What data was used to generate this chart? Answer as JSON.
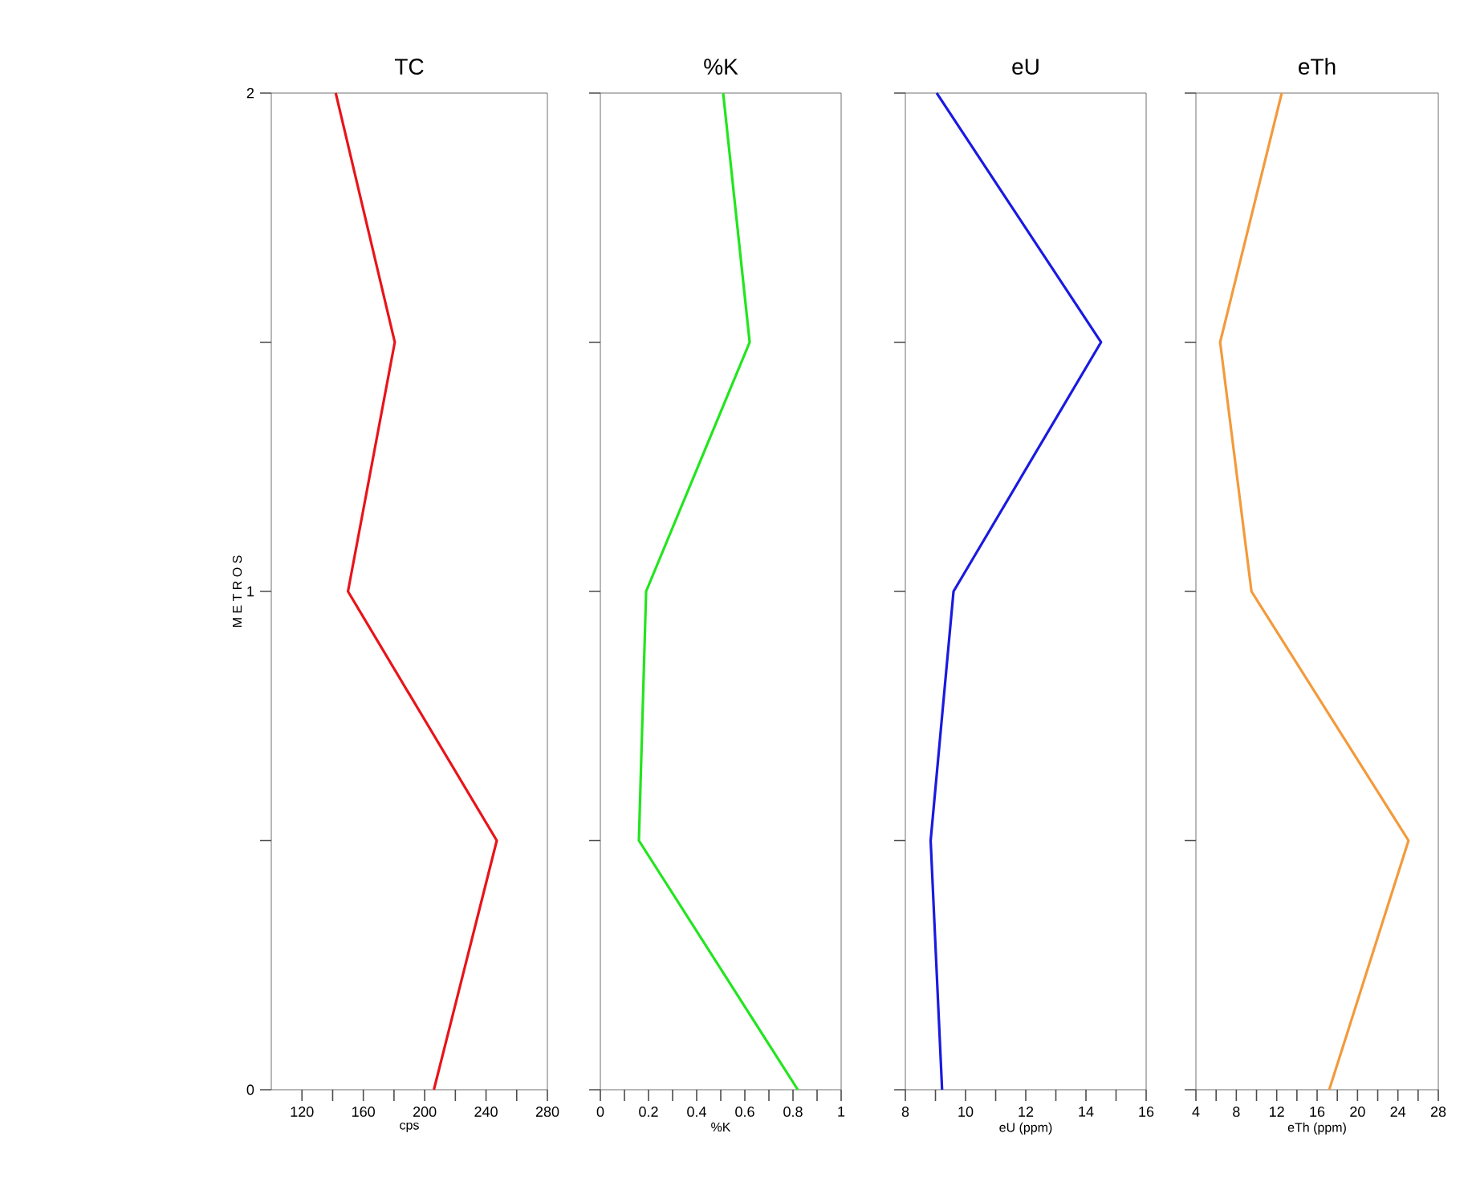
{
  "chart_data": [
    {
      "type": "line",
      "title": "TC",
      "xlabel": "cps",
      "ylabel": "M E T R O S",
      "color": "#e8141a",
      "marker": "none",
      "line_style": "solid",
      "grid": false,
      "x": [
        206,
        247,
        150,
        180.5,
        142
      ],
      "values": [
        0,
        0.5,
        1,
        1.5,
        2
      ],
      "xlim": [
        100,
        280
      ],
      "ylim": [
        0,
        2
      ],
      "xticks": [
        120,
        {
          "value": 140,
          "label": null
        },
        160,
        {
          "value": 180,
          "label": null
        },
        200,
        {
          "value": 220,
          "label": null
        },
        240,
        {
          "value": 260,
          "label": null
        },
        280
      ],
      "yticks": [
        0,
        {
          "value": 0.5,
          "label": null
        },
        1,
        {
          "value": 1.5,
          "label": null
        },
        2
      ]
    },
    {
      "type": "line",
      "title": "%K",
      "xlabel": "%K",
      "color": "#22e51e",
      "marker": "none",
      "line_style": "solid",
      "grid": false,
      "tick_labels": "x",
      "x": [
        0.82,
        0.16,
        0.19,
        0.62,
        0.51
      ],
      "values": [
        0,
        0.5,
        1,
        1.5,
        2
      ],
      "xlim": [
        0,
        1
      ],
      "ylim": [
        0,
        2
      ],
      "xticks": [
        0,
        {
          "value": 0.1,
          "label": null
        },
        0.2,
        {
          "value": 0.3,
          "label": null
        },
        0.4,
        {
          "value": 0.5,
          "label": null
        },
        0.6,
        {
          "value": 0.7,
          "label": null
        },
        0.8,
        {
          "value": 0.9,
          "label": null
        },
        1
      ],
      "yticks": [
        {
          "value": 0,
          "label": null
        },
        {
          "value": 0.5,
          "label": null
        },
        {
          "value": 1,
          "label": null
        },
        {
          "value": 1.5,
          "label": null
        },
        {
          "value": 2,
          "label": null
        }
      ]
    },
    {
      "type": "line",
      "title": "eU",
      "xlabel": "eU (ppm)",
      "color": "#1a1ae0",
      "marker": "none",
      "line_style": "solid",
      "grid": false,
      "tick_labels": "x",
      "x": [
        9.22,
        8.84,
        9.6,
        14.5,
        9.04
      ],
      "values": [
        0,
        0.5,
        1,
        1.5,
        2
      ],
      "xlim": [
        8,
        16
      ],
      "ylim": [
        0,
        2
      ],
      "xticks": [
        8,
        {
          "value": 9,
          "label": null
        },
        10,
        {
          "value": 11,
          "label": null
        },
        12,
        {
          "value": 13,
          "label": null
        },
        14,
        {
          "value": 15,
          "label": null
        },
        16
      ],
      "yticks": [
        {
          "value": 0,
          "label": null
        },
        {
          "value": 0.5,
          "label": null
        },
        {
          "value": 1,
          "label": null
        },
        {
          "value": 1.5,
          "label": null
        },
        {
          "value": 2,
          "label": null
        }
      ]
    },
    {
      "type": "line",
      "title": "eTh",
      "xlabel": "eTh (ppm)",
      "color": "#f39a3c",
      "marker": "none",
      "line_style": "solid",
      "grid": false,
      "tick_labels": "x",
      "x": [
        17.2,
        25.05,
        9.5,
        6.4,
        12.5
      ],
      "values": [
        0,
        0.5,
        1,
        1.5,
        2
      ],
      "xlim": [
        4,
        28
      ],
      "ylim": [
        0,
        2
      ],
      "xticks": [
        4,
        {
          "value": 6,
          "label": null
        },
        8,
        {
          "value": 10,
          "label": null
        },
        12,
        {
          "value": 14,
          "label": null
        },
        16,
        {
          "value": 18,
          "label": null
        },
        20,
        {
          "value": 22,
          "label": null
        },
        24,
        {
          "value": 26,
          "label": null
        },
        28
      ],
      "yticks": [
        {
          "value": 0,
          "label": null
        },
        {
          "value": 0.5,
          "label": null
        },
        {
          "value": 1,
          "label": null
        },
        {
          "value": 1.5,
          "label": null
        },
        {
          "value": 2,
          "label": null
        }
      ]
    }
  ]
}
